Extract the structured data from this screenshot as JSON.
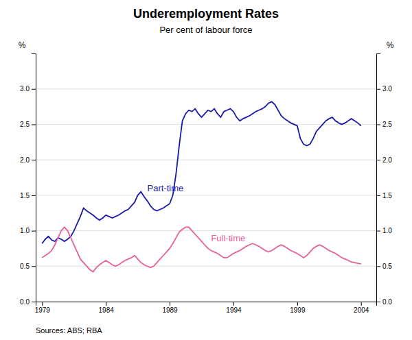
{
  "chart_data": {
    "type": "line",
    "title": "Underemployment Rates",
    "subtitle": "Per cent of labour force",
    "ylabel": "%",
    "y2label": "%",
    "source": "Sources: ABS; RBA",
    "grid": true,
    "xlim": [
      1978.5,
      2005.2
    ],
    "xticks": [
      1979,
      1984,
      1989,
      1994,
      1999,
      2004
    ],
    "ylim": [
      0.0,
      3.5
    ],
    "yticks": [
      {
        "value": 0.0,
        "label": "0.0"
      },
      {
        "value": 0.5,
        "label": "0.5"
      },
      {
        "value": 1.0,
        "label": "1.0"
      },
      {
        "value": 1.5,
        "label": "1.5"
      },
      {
        "value": 2.0,
        "label": "2.0"
      },
      {
        "value": 2.5,
        "label": "2.5"
      },
      {
        "value": 3.0,
        "label": "3.0"
      }
    ],
    "y2lim": [
      0.0,
      3.5
    ],
    "y2ticks": [
      {
        "value": 0.0,
        "label": "0.0"
      },
      {
        "value": 0.5,
        "label": "0.5"
      },
      {
        "value": 1.0,
        "label": "1.0"
      },
      {
        "value": 1.5,
        "label": "1.5"
      },
      {
        "value": 2.0,
        "label": "2.0"
      },
      {
        "value": 2.5,
        "label": "2.5"
      },
      {
        "value": 3.0,
        "label": "3.0"
      }
    ],
    "x": [
      1979.0,
      1979.25,
      1979.5,
      1979.75,
      1980.0,
      1980.25,
      1980.5,
      1980.75,
      1981.0,
      1981.25,
      1981.5,
      1981.75,
      1982.0,
      1982.25,
      1982.5,
      1982.75,
      1983.0,
      1983.25,
      1983.5,
      1983.75,
      1984.0,
      1984.25,
      1984.5,
      1984.75,
      1985.0,
      1985.25,
      1985.5,
      1985.75,
      1986.0,
      1986.25,
      1986.5,
      1986.75,
      1987.0,
      1987.25,
      1987.5,
      1987.75,
      1988.0,
      1988.25,
      1988.5,
      1988.75,
      1989.0,
      1989.25,
      1989.5,
      1989.75,
      1990.0,
      1990.25,
      1990.5,
      1990.75,
      1991.0,
      1991.25,
      1991.5,
      1991.75,
      1992.0,
      1992.25,
      1992.5,
      1992.75,
      1993.0,
      1993.25,
      1993.5,
      1993.75,
      1994.0,
      1994.25,
      1994.5,
      1994.75,
      1995.0,
      1995.25,
      1995.5,
      1995.75,
      1996.0,
      1996.25,
      1996.5,
      1996.75,
      1997.0,
      1997.25,
      1997.5,
      1997.75,
      1998.0,
      1998.25,
      1998.5,
      1998.75,
      1999.0,
      1999.25,
      1999.5,
      1999.75,
      2000.0,
      2000.25,
      2000.5,
      2000.75,
      2001.0,
      2001.25,
      2001.5,
      2001.75,
      2002.0,
      2002.25,
      2002.5,
      2002.75,
      2003.0,
      2003.25,
      2003.5,
      2003.75,
      2004.0
    ],
    "series": [
      {
        "name": "Part-time",
        "color": "#1a1aaa",
        "values": [
          0.82,
          0.88,
          0.92,
          0.87,
          0.85,
          0.9,
          0.88,
          0.85,
          0.88,
          0.92,
          1.0,
          1.1,
          1.2,
          1.32,
          1.28,
          1.25,
          1.22,
          1.18,
          1.15,
          1.18,
          1.22,
          1.2,
          1.18,
          1.2,
          1.22,
          1.25,
          1.28,
          1.3,
          1.35,
          1.4,
          1.5,
          1.55,
          1.48,
          1.42,
          1.35,
          1.3,
          1.28,
          1.3,
          1.32,
          1.35,
          1.38,
          1.5,
          1.8,
          2.2,
          2.55,
          2.65,
          2.7,
          2.68,
          2.72,
          2.65,
          2.6,
          2.65,
          2.7,
          2.68,
          2.72,
          2.65,
          2.6,
          2.68,
          2.7,
          2.72,
          2.68,
          2.6,
          2.55,
          2.58,
          2.6,
          2.62,
          2.65,
          2.68,
          2.7,
          2.72,
          2.75,
          2.8,
          2.82,
          2.78,
          2.7,
          2.62,
          2.58,
          2.55,
          2.52,
          2.5,
          2.48,
          2.3,
          2.22,
          2.2,
          2.22,
          2.3,
          2.4,
          2.45,
          2.5,
          2.55,
          2.58,
          2.6,
          2.55,
          2.52,
          2.5,
          2.52,
          2.55,
          2.58,
          2.55,
          2.52,
          2.48
        ]
      },
      {
        "name": "Full-time",
        "color": "#e8609a",
        "values": [
          0.62,
          0.65,
          0.68,
          0.72,
          0.8,
          0.9,
          1.0,
          1.05,
          1.0,
          0.9,
          0.8,
          0.7,
          0.6,
          0.55,
          0.5,
          0.45,
          0.42,
          0.48,
          0.52,
          0.55,
          0.58,
          0.55,
          0.52,
          0.5,
          0.52,
          0.55,
          0.58,
          0.6,
          0.62,
          0.65,
          0.6,
          0.55,
          0.52,
          0.5,
          0.48,
          0.5,
          0.55,
          0.6,
          0.65,
          0.7,
          0.75,
          0.82,
          0.9,
          0.98,
          1.02,
          1.05,
          1.05,
          1.0,
          0.95,
          0.9,
          0.85,
          0.8,
          0.75,
          0.72,
          0.7,
          0.68,
          0.65,
          0.62,
          0.62,
          0.65,
          0.68,
          0.7,
          0.72,
          0.75,
          0.78,
          0.8,
          0.82,
          0.8,
          0.78,
          0.75,
          0.72,
          0.7,
          0.72,
          0.75,
          0.78,
          0.8,
          0.78,
          0.75,
          0.72,
          0.7,
          0.68,
          0.65,
          0.62,
          0.65,
          0.7,
          0.75,
          0.78,
          0.8,
          0.78,
          0.75,
          0.72,
          0.7,
          0.68,
          0.65,
          0.62,
          0.6,
          0.58,
          0.56,
          0.55,
          0.54,
          0.53
        ]
      }
    ]
  }
}
